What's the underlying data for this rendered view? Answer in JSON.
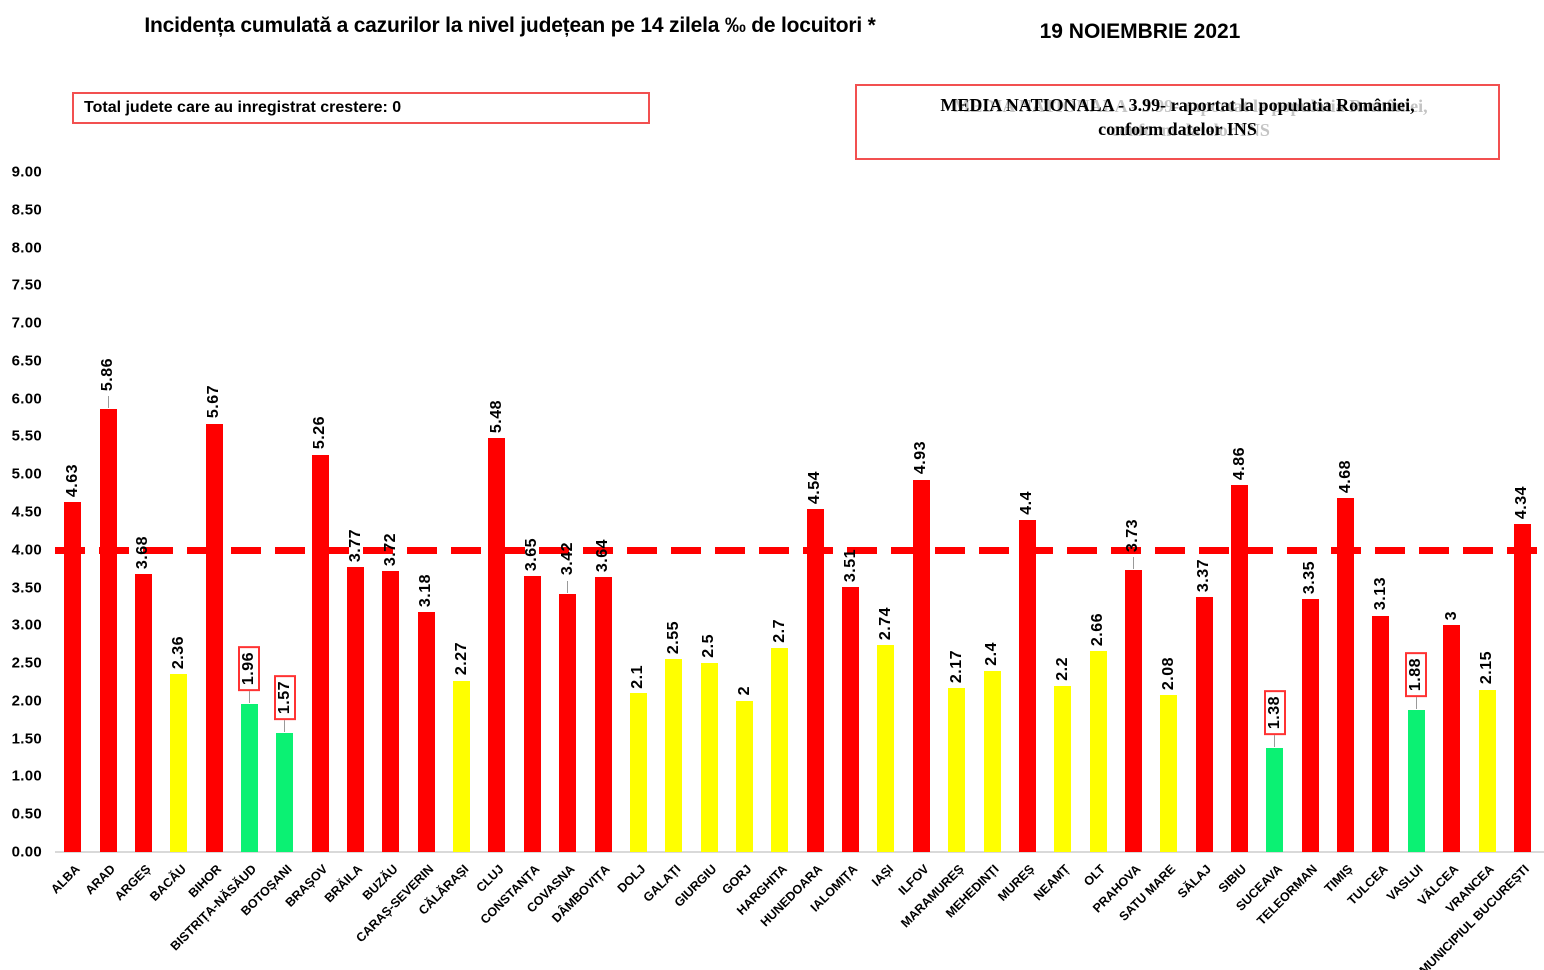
{
  "header": {
    "title": "Incidența cumulată a cazurilor la nivel județean pe 14 zilela ‰ de locuitori *",
    "date": "19 NOIEMBRIE 2021"
  },
  "info_boxes": {
    "left_text": "Total judete care au inregistrat crestere: 0",
    "right_line1": "MEDIA NATIONALA  - 3.99-  raportat la populatia României,",
    "right_line2": "conform datelor INS"
  },
  "chart_data": {
    "type": "bar",
    "title": "Incidența cumulată a cazurilor la nivel județean pe 14 zilela ‰ de locuitori *",
    "xlabel": "",
    "ylabel": "",
    "ylim": [
      0,
      9
    ],
    "ytick_step": 0.5,
    "grid": false,
    "legend": false,
    "national_average": 3.99,
    "reference_line": {
      "value": 3.99,
      "style": "dashed",
      "color": "#FF0000"
    },
    "palette": {
      "red": "#FF0000",
      "yellow": "#FFFF00",
      "green": "#0BF173"
    },
    "yticks": [
      "0.00",
      "0.50",
      "1.00",
      "1.50",
      "2.00",
      "2.50",
      "3.00",
      "3.50",
      "4.00",
      "4.50",
      "5.00",
      "5.50",
      "6.00",
      "6.50",
      "7.00",
      "7.50",
      "8.00",
      "8.50",
      "9.00"
    ],
    "bars": [
      {
        "name": "ALBA",
        "value": 4.63,
        "label": "4.63",
        "color": "red",
        "boxed": false,
        "leader": false
      },
      {
        "name": "ARAD",
        "value": 5.86,
        "label": "5.86",
        "color": "red",
        "boxed": false,
        "leader": true
      },
      {
        "name": "ARGEȘ",
        "value": 3.68,
        "label": "3.68",
        "color": "red",
        "boxed": false,
        "leader": false
      },
      {
        "name": "BACĂU",
        "value": 2.36,
        "label": "2.36",
        "color": "yellow",
        "boxed": false,
        "leader": false
      },
      {
        "name": "BIHOR",
        "value": 5.67,
        "label": "5.67",
        "color": "red",
        "boxed": false,
        "leader": false
      },
      {
        "name": "BISTRIȚA-NĂSĂUD",
        "value": 1.96,
        "label": "1.96",
        "color": "green",
        "boxed": true,
        "leader": true
      },
      {
        "name": "BOTOȘANI",
        "value": 1.57,
        "label": "1.57",
        "color": "green",
        "boxed": true,
        "leader": true
      },
      {
        "name": "BRAȘOV",
        "value": 5.26,
        "label": "5.26",
        "color": "red",
        "boxed": false,
        "leader": false
      },
      {
        "name": "BRĂILA",
        "value": 3.77,
        "label": "3.77",
        "color": "red",
        "boxed": false,
        "leader": false
      },
      {
        "name": "BUZĂU",
        "value": 3.72,
        "label": "3.72",
        "color": "red",
        "boxed": false,
        "leader": false
      },
      {
        "name": "CARAȘ-SEVERIN",
        "value": 3.18,
        "label": "3.18",
        "color": "red",
        "boxed": false,
        "leader": false
      },
      {
        "name": "CĂLĂRAȘI",
        "value": 2.27,
        "label": "2.27",
        "color": "yellow",
        "boxed": false,
        "leader": false
      },
      {
        "name": "CLUJ",
        "value": 5.48,
        "label": "5.48",
        "color": "red",
        "boxed": false,
        "leader": false
      },
      {
        "name": "CONSTANȚA",
        "value": 3.65,
        "label": "3.65",
        "color": "red",
        "boxed": false,
        "leader": false
      },
      {
        "name": "COVASNA",
        "value": 3.42,
        "label": "3.42",
        "color": "red",
        "boxed": false,
        "leader": true
      },
      {
        "name": "DÂMBOVIȚA",
        "value": 3.64,
        "label": "3.64",
        "color": "red",
        "boxed": false,
        "leader": false
      },
      {
        "name": "DOLJ",
        "value": 2.1,
        "label": "2.1",
        "color": "yellow",
        "boxed": false,
        "leader": false
      },
      {
        "name": "GALAȚI",
        "value": 2.55,
        "label": "2.55",
        "color": "yellow",
        "boxed": false,
        "leader": false
      },
      {
        "name": "GIURGIU",
        "value": 2.5,
        "label": "2.5",
        "color": "yellow",
        "boxed": false,
        "leader": false
      },
      {
        "name": "GORJ",
        "value": 2,
        "label": "2",
        "color": "yellow",
        "boxed": false,
        "leader": false
      },
      {
        "name": "HARGHITA",
        "value": 2.7,
        "label": "2.7",
        "color": "yellow",
        "boxed": false,
        "leader": false
      },
      {
        "name": "HUNEDOARA",
        "value": 4.54,
        "label": "4.54",
        "color": "red",
        "boxed": false,
        "leader": false
      },
      {
        "name": "IALOMIȚA",
        "value": 3.51,
        "label": "3.51",
        "color": "red",
        "boxed": false,
        "leader": false
      },
      {
        "name": "IAȘI",
        "value": 2.74,
        "label": "2.74",
        "color": "yellow",
        "boxed": false,
        "leader": false
      },
      {
        "name": "ILFOV",
        "value": 4.93,
        "label": "4.93",
        "color": "red",
        "boxed": false,
        "leader": false
      },
      {
        "name": "MARAMUREȘ",
        "value": 2.17,
        "label": "2.17",
        "color": "yellow",
        "boxed": false,
        "leader": false
      },
      {
        "name": "MEHEDINȚI",
        "value": 2.4,
        "label": "2.4",
        "color": "yellow",
        "boxed": false,
        "leader": false
      },
      {
        "name": "MUREȘ",
        "value": 4.4,
        "label": "4.4",
        "color": "red",
        "boxed": false,
        "leader": false
      },
      {
        "name": "NEAMȚ",
        "value": 2.2,
        "label": "2.2",
        "color": "yellow",
        "boxed": false,
        "leader": false
      },
      {
        "name": "OLT",
        "value": 2.66,
        "label": "2.66",
        "color": "yellow",
        "boxed": false,
        "leader": false
      },
      {
        "name": "PRAHOVA",
        "value": 3.73,
        "label": "3.73",
        "color": "red",
        "boxed": false,
        "leader": true
      },
      {
        "name": "SATU MARE",
        "value": 2.08,
        "label": "2.08",
        "color": "yellow",
        "boxed": false,
        "leader": false
      },
      {
        "name": "SĂLAJ",
        "value": 3.37,
        "label": "3.37",
        "color": "red",
        "boxed": false,
        "leader": false
      },
      {
        "name": "SIBIU",
        "value": 4.86,
        "label": "4.86",
        "color": "red",
        "boxed": false,
        "leader": false
      },
      {
        "name": "SUCEAVA",
        "value": 1.38,
        "label": "1.38",
        "color": "green",
        "boxed": true,
        "leader": true
      },
      {
        "name": "TELEORMAN",
        "value": 3.35,
        "label": "3.35",
        "color": "red",
        "boxed": false,
        "leader": false
      },
      {
        "name": "TIMIȘ",
        "value": 4.68,
        "label": "4.68",
        "color": "red",
        "boxed": false,
        "leader": false
      },
      {
        "name": "TULCEA",
        "value": 3.13,
        "label": "3.13",
        "color": "red",
        "boxed": false,
        "leader": false
      },
      {
        "name": "VASLUI",
        "value": 1.88,
        "label": "1.88",
        "color": "green",
        "boxed": true,
        "leader": true
      },
      {
        "name": "VÂLCEA",
        "value": 3,
        "label": "3",
        "color": "red",
        "boxed": false,
        "leader": false
      },
      {
        "name": "VRANCEA",
        "value": 2.15,
        "label": "2.15",
        "color": "yellow",
        "boxed": false,
        "leader": false
      },
      {
        "name": "MUNICIPIUL BUCUREȘTI",
        "value": 4.34,
        "label": "4.34",
        "color": "red",
        "boxed": false,
        "leader": false
      }
    ]
  }
}
